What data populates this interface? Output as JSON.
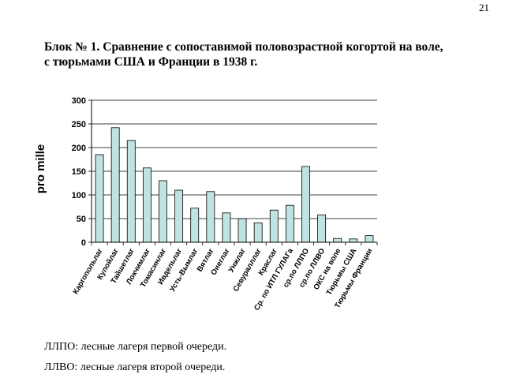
{
  "page_number": "21",
  "title_line1": "Блок № 1. Сравнение с сопоставимой половозрастной когортой на воле,",
  "title_line2": "с тюрьмами США и Франции в 1938 г.",
  "notes": [
    "ЛЛПО: лесные лагеря первой очереди.",
    "ЛЛВО: лесные лагеря второй очереди."
  ],
  "chart_data": {
    "type": "bar",
    "ylabel": "pro mille",
    "ylim": [
      0,
      300
    ],
    "yticks": [
      0,
      50,
      100,
      150,
      200,
      250,
      300
    ],
    "grid": true,
    "legend": "none",
    "bar_color": "#bfe3e3",
    "categories": [
      "Каргопольлаг",
      "Кулойлаг",
      "Тайшетлаг",
      "Локчимлаг",
      "Томасинлаг",
      "Ивдельлаг",
      "Усть-Вымлаг",
      "Вятлаг",
      "Онеглаг",
      "Унжлаг",
      "Севуралллаг",
      "Краслаг",
      "Ср. по ИТЛ ГУЛАГа",
      "ср.по ЛЛПО",
      "ср.по ЛЛВО",
      "ОКС на воле",
      "Тюрьмы США",
      "Тюрьмы Франции"
    ],
    "values": [
      185,
      242,
      215,
      157,
      130,
      110,
      72,
      107,
      62,
      50,
      41,
      68,
      78,
      160,
      58,
      8,
      7,
      14
    ]
  }
}
